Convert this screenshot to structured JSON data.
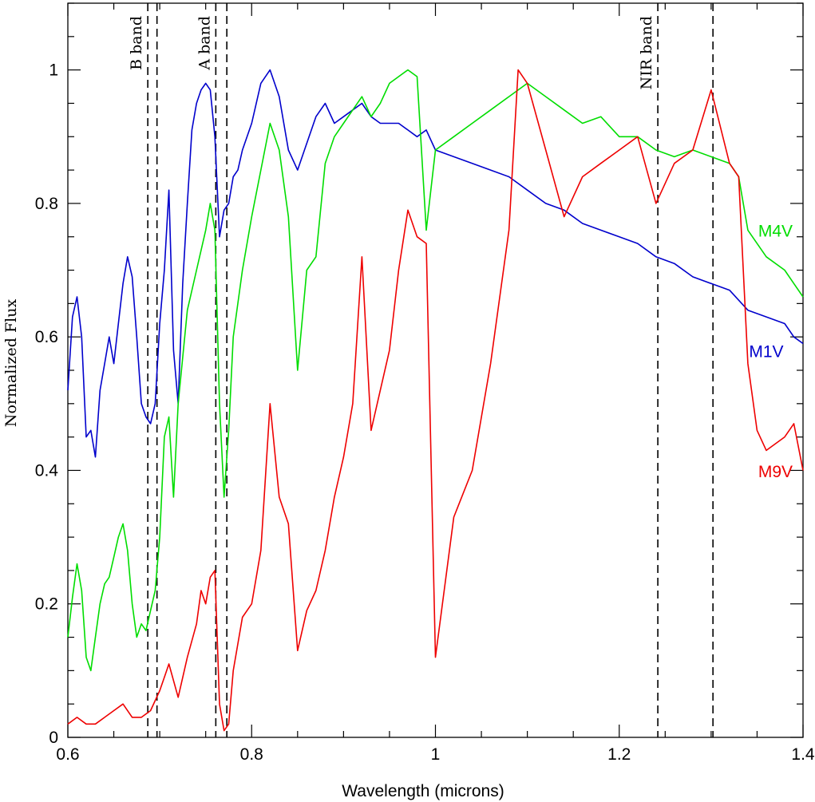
{
  "chart_data": {
    "type": "line",
    "title": "",
    "xlabel": "Wavelength (microns)",
    "ylabel": "Normalized Flux",
    "xlim": [
      0.6,
      1.4
    ],
    "ylim": [
      0,
      1.1
    ],
    "x_ticks": [
      0.6,
      0.8,
      1.0,
      1.2,
      1.4
    ],
    "x_tick_labels": [
      "0.6",
      "0.8",
      "1",
      "1.2",
      "1.4"
    ],
    "y_ticks": [
      0,
      0.2,
      0.4,
      0.6,
      0.8,
      1.0
    ],
    "y_tick_labels": [
      "0",
      "0.2",
      "0.4",
      "0.6",
      "0.8",
      "1"
    ],
    "bands": [
      {
        "name": "B band",
        "x1": 0.687,
        "x2": 0.697
      },
      {
        "name": "A band",
        "x1": 0.761,
        "x2": 0.773
      },
      {
        "name": "NIR band",
        "x1": 1.242,
        "x2": 1.302
      }
    ],
    "series": [
      {
        "name": "M1V",
        "color": "#0000cc",
        "label_pos": {
          "x": 1.36,
          "y": 0.57
        },
        "x": [
          0.6,
          0.605,
          0.61,
          0.615,
          0.62,
          0.625,
          0.63,
          0.635,
          0.64,
          0.645,
          0.65,
          0.655,
          0.66,
          0.665,
          0.67,
          0.675,
          0.68,
          0.685,
          0.69,
          0.695,
          0.7,
          0.705,
          0.71,
          0.715,
          0.72,
          0.725,
          0.73,
          0.735,
          0.74,
          0.745,
          0.75,
          0.755,
          0.76,
          0.765,
          0.77,
          0.775,
          0.78,
          0.785,
          0.79,
          0.8,
          0.81,
          0.82,
          0.83,
          0.84,
          0.85,
          0.86,
          0.87,
          0.88,
          0.89,
          0.9,
          0.91,
          0.92,
          0.93,
          0.94,
          0.95,
          0.96,
          0.97,
          0.98,
          0.99,
          1.0,
          1.02,
          1.04,
          1.06,
          1.08,
          1.1,
          1.12,
          1.14,
          1.16,
          1.18,
          1.2,
          1.22,
          1.24,
          1.26,
          1.28,
          1.3,
          1.32,
          1.34,
          1.36,
          1.38,
          1.39,
          1.4
        ],
        "y": [
          0.52,
          0.63,
          0.66,
          0.6,
          0.45,
          0.46,
          0.42,
          0.52,
          0.56,
          0.6,
          0.56,
          0.62,
          0.68,
          0.72,
          0.69,
          0.6,
          0.5,
          0.48,
          0.47,
          0.5,
          0.62,
          0.7,
          0.82,
          0.58,
          0.5,
          0.68,
          0.8,
          0.91,
          0.95,
          0.97,
          0.98,
          0.97,
          0.9,
          0.75,
          0.79,
          0.8,
          0.84,
          0.85,
          0.88,
          0.92,
          0.98,
          1.0,
          0.96,
          0.88,
          0.85,
          0.89,
          0.93,
          0.95,
          0.92,
          0.93,
          0.94,
          0.95,
          0.93,
          0.92,
          0.92,
          0.92,
          0.91,
          0.9,
          0.91,
          0.88,
          0.87,
          0.86,
          0.85,
          0.84,
          0.82,
          0.8,
          0.79,
          0.77,
          0.76,
          0.75,
          0.74,
          0.72,
          0.71,
          0.69,
          0.68,
          0.67,
          0.64,
          0.63,
          0.62,
          0.6,
          0.59
        ]
      },
      {
        "name": "M4V",
        "color": "#00dd00",
        "label_pos": {
          "x": 1.37,
          "y": 0.75
        },
        "x": [
          0.6,
          0.605,
          0.61,
          0.615,
          0.62,
          0.625,
          0.63,
          0.635,
          0.64,
          0.645,
          0.65,
          0.655,
          0.66,
          0.665,
          0.67,
          0.675,
          0.68,
          0.685,
          0.69,
          0.695,
          0.7,
          0.705,
          0.71,
          0.715,
          0.72,
          0.73,
          0.74,
          0.75,
          0.755,
          0.76,
          0.765,
          0.77,
          0.775,
          0.78,
          0.79,
          0.8,
          0.81,
          0.82,
          0.83,
          0.84,
          0.85,
          0.86,
          0.87,
          0.88,
          0.89,
          0.9,
          0.91,
          0.92,
          0.93,
          0.94,
          0.95,
          0.96,
          0.97,
          0.98,
          0.99,
          1.0,
          1.02,
          1.04,
          1.06,
          1.08,
          1.1,
          1.12,
          1.14,
          1.16,
          1.18,
          1.2,
          1.22,
          1.24,
          1.26,
          1.28,
          1.3,
          1.32,
          1.33,
          1.34,
          1.36,
          1.38,
          1.39,
          1.4
        ],
        "y": [
          0.15,
          0.21,
          0.26,
          0.22,
          0.12,
          0.1,
          0.15,
          0.2,
          0.23,
          0.24,
          0.27,
          0.3,
          0.32,
          0.28,
          0.2,
          0.15,
          0.17,
          0.16,
          0.19,
          0.22,
          0.3,
          0.45,
          0.48,
          0.36,
          0.5,
          0.64,
          0.7,
          0.76,
          0.8,
          0.76,
          0.5,
          0.36,
          0.46,
          0.6,
          0.7,
          0.78,
          0.85,
          0.92,
          0.88,
          0.78,
          0.55,
          0.7,
          0.72,
          0.86,
          0.9,
          0.92,
          0.94,
          0.96,
          0.93,
          0.95,
          0.98,
          0.99,
          1.0,
          0.99,
          0.76,
          0.88,
          0.9,
          0.92,
          0.94,
          0.96,
          0.98,
          0.96,
          0.94,
          0.92,
          0.93,
          0.9,
          0.9,
          0.88,
          0.87,
          0.88,
          0.87,
          0.86,
          0.84,
          0.76,
          0.72,
          0.7,
          0.68,
          0.66
        ]
      },
      {
        "name": "M9V",
        "color": "#ee0000",
        "label_pos": {
          "x": 1.37,
          "y": 0.39
        },
        "x": [
          0.6,
          0.61,
          0.62,
          0.63,
          0.64,
          0.65,
          0.66,
          0.67,
          0.68,
          0.69,
          0.7,
          0.705,
          0.71,
          0.72,
          0.73,
          0.74,
          0.745,
          0.75,
          0.755,
          0.76,
          0.765,
          0.77,
          0.775,
          0.78,
          0.79,
          0.8,
          0.81,
          0.82,
          0.83,
          0.84,
          0.85,
          0.86,
          0.87,
          0.88,
          0.89,
          0.9,
          0.91,
          0.92,
          0.93,
          0.94,
          0.95,
          0.96,
          0.97,
          0.98,
          0.99,
          1.0,
          1.02,
          1.04,
          1.06,
          1.08,
          1.09,
          1.1,
          1.12,
          1.14,
          1.16,
          1.18,
          1.2,
          1.22,
          1.24,
          1.26,
          1.28,
          1.3,
          1.32,
          1.33,
          1.34,
          1.35,
          1.36,
          1.38,
          1.39,
          1.4
        ],
        "y": [
          0.02,
          0.03,
          0.02,
          0.02,
          0.03,
          0.04,
          0.05,
          0.03,
          0.03,
          0.04,
          0.07,
          0.09,
          0.11,
          0.06,
          0.12,
          0.17,
          0.22,
          0.2,
          0.24,
          0.25,
          0.05,
          0.01,
          0.02,
          0.1,
          0.18,
          0.2,
          0.28,
          0.5,
          0.36,
          0.32,
          0.13,
          0.19,
          0.22,
          0.28,
          0.36,
          0.42,
          0.5,
          0.72,
          0.46,
          0.52,
          0.58,
          0.7,
          0.79,
          0.75,
          0.74,
          0.12,
          0.33,
          0.4,
          0.56,
          0.76,
          1.0,
          0.98,
          0.88,
          0.78,
          0.84,
          0.86,
          0.88,
          0.9,
          0.8,
          0.86,
          0.88,
          0.97,
          0.86,
          0.84,
          0.56,
          0.46,
          0.43,
          0.45,
          0.47,
          0.4
        ]
      }
    ]
  }
}
